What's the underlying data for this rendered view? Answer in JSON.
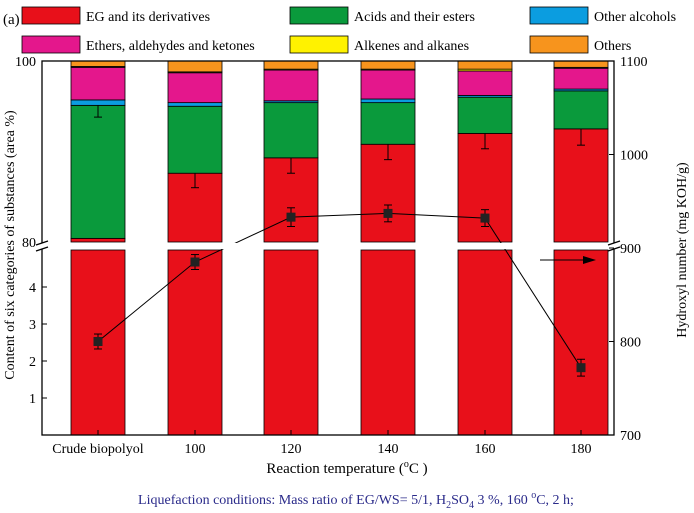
{
  "chart_data": {
    "type": "bar",
    "panel_label": "(a)",
    "categories": [
      "Crude biopolyol",
      "100",
      "120",
      "140",
      "160",
      "180"
    ],
    "xlabel_prefix": "Reaction temperature (",
    "xlabel_sup": "o",
    "xlabel_suffix": "C )",
    "ylabel_left": "Content of six categories of substances (area %)",
    "ylabel_right": "Hydroxyl number (mg KOH/g)",
    "left_axis": {
      "lower_ticks": [
        "1",
        "2",
        "3",
        "4"
      ],
      "upper_ticks": [
        "80",
        "100"
      ],
      "lower_range": [
        0,
        5
      ],
      "upper_range": [
        80,
        100
      ]
    },
    "right_axis": {
      "range": [
        700,
        1100
      ],
      "ticks": [
        "700",
        "800",
        "900",
        "1000",
        "1100"
      ]
    },
    "stacked_series": [
      {
        "name": "EG and its derivatives",
        "color": "#e8101a",
        "values": [
          80.4,
          87.6,
          89.3,
          90.8,
          92.0,
          92.5
        ],
        "errors": [
          0,
          1.6,
          1.7,
          1.7,
          1.7,
          1.8
        ]
      },
      {
        "name": "Acids and their esters",
        "color": "#0a9a3c",
        "values": [
          14.7,
          7.4,
          6.1,
          4.6,
          4.0,
          4.2
        ],
        "errors": [
          1.3,
          0,
          0,
          0,
          0,
          0
        ]
      },
      {
        "name": "Other alcohols",
        "color": "#0b9de0",
        "values": [
          0.6,
          0.4,
          0.2,
          0.4,
          0.2,
          0.2
        ],
        "errors": [
          0,
          0,
          0,
          0,
          0,
          0
        ]
      },
      {
        "name": "Ethers, aldehydes and ketones",
        "color": "#e4178c",
        "values": [
          3.6,
          3.3,
          3.4,
          3.2,
          2.7,
          2.3
        ],
        "errors": [
          0,
          0,
          0,
          0,
          0,
          0
        ]
      },
      {
        "name": "Alkenes and alkanes",
        "color": "#fff200",
        "values": [
          0.1,
          0.1,
          0.1,
          0.1,
          0.2,
          0.1
        ],
        "errors": [
          0,
          0,
          0,
          0,
          0,
          0
        ]
      },
      {
        "name": "Others",
        "color": "#f7941d",
        "values": [
          0.6,
          1.2,
          0.9,
          0.9,
          0.9,
          0.7
        ],
        "errors": [
          0,
          0,
          0,
          0,
          0,
          0
        ]
      }
    ],
    "line_series": {
      "name": "Hydroxyl number",
      "color": "#000000",
      "values": [
        800,
        885,
        933,
        937,
        932,
        772
      ],
      "errors": [
        8,
        8,
        10,
        9,
        9,
        9
      ]
    },
    "legend_placement": "top",
    "footnote": {
      "prefix": "Liquefaction conditions: Mass ratio of EG/WS= 5/1, H",
      "sub1": "2",
      "mid": "SO",
      "sub2": "4",
      "mid2": " 3 %, 160 ",
      "sup": "o",
      "suffix": "C, 2 h;",
      "color": "#2a2a8a"
    }
  }
}
